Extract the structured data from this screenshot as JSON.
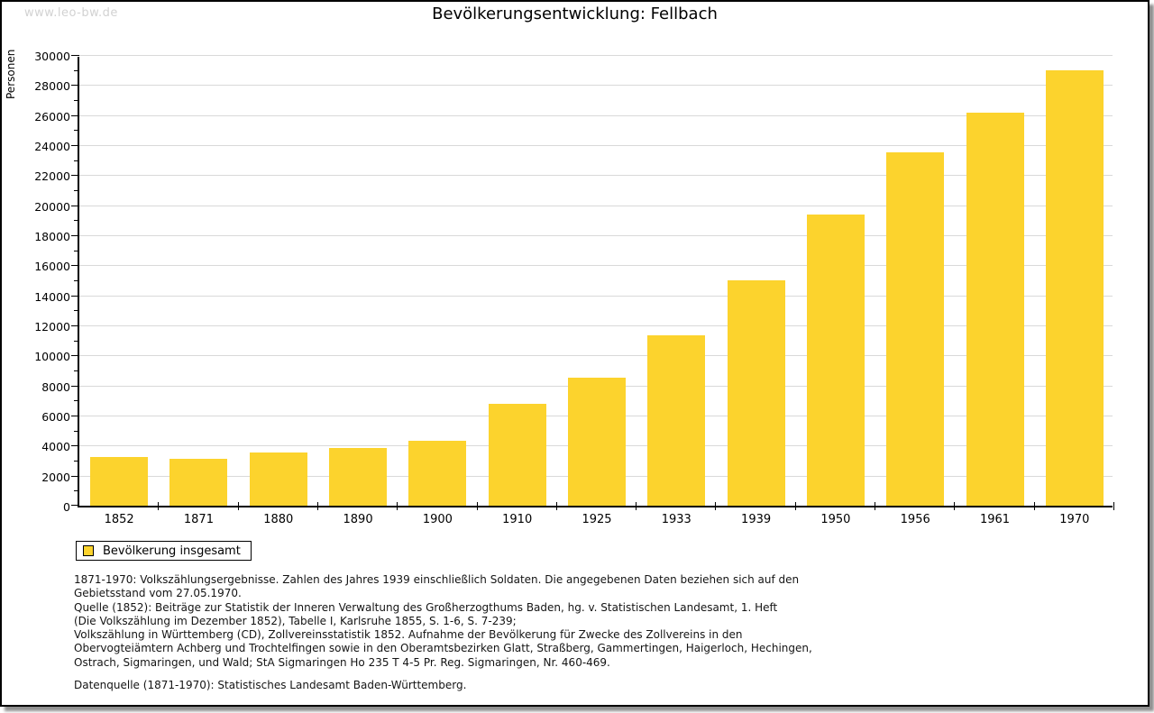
{
  "watermark": "www.leo-bw.de",
  "title": "Bevölkerungsentwicklung: Fellbach",
  "chart_data": {
    "type": "bar",
    "title": "Bevölkerungsentwicklung: Fellbach",
    "categories": [
      "1852",
      "1871",
      "1880",
      "1890",
      "1900",
      "1910",
      "1925",
      "1933",
      "1939",
      "1950",
      "1956",
      "1961",
      "1970"
    ],
    "series": [
      {
        "name": "Bevölkerung insgesamt",
        "values": [
          3250,
          3150,
          3550,
          3850,
          4350,
          6800,
          8500,
          11350,
          15000,
          19400,
          23500,
          26150,
          29000
        ]
      }
    ],
    "xlabel": "",
    "ylabel": "Personen",
    "ylim": [
      0,
      30000
    ],
    "ytick_step": 2000,
    "ytick_minor_step": 1000,
    "grid": "horizontal-major",
    "legend_position": "bottom-left",
    "bar_color": "#fcd32d",
    "gridline_color": "#d9d9d9"
  },
  "legend": {
    "label": "Bevölkerung insgesamt",
    "swatch_color": "#fcd32d"
  },
  "footnotes": {
    "lines": [
      "1871-1970: Volkszählungsergebnisse. Zahlen des Jahres 1939 einschließlich Soldaten. Die angegebenen Daten beziehen sich auf den",
      "Gebietsstand vom 27.05.1970.",
      "Quelle (1852): Beiträge zur Statistik der Inneren Verwaltung des Großherzogthums Baden, hg. v. Statistischen Landesamt, 1. Heft",
      "(Die Volkszählung im Dezember 1852), Tabelle I, Karlsruhe 1855, S. 1-6, S. 7-239;",
      "Volkszählung in Württemberg (CD), Zollvereinsstatistik 1852. Aufnahme der Bevölkerung für Zwecke des Zollvereins in den",
      "Obervogteiämtern Achberg und Trochtelfingen sowie in den Oberamtsbezirken Glatt, Straßberg, Gammertingen, Haigerloch, Hechingen,",
      "Ostrach, Sigmaringen, und Wald; StA Sigmaringen Ho 235 T 4-5 Pr. Reg. Sigmaringen, Nr. 460-469."
    ],
    "datasource": "Datenquelle (1871-1970): Statistisches Landesamt Baden-Württemberg."
  }
}
